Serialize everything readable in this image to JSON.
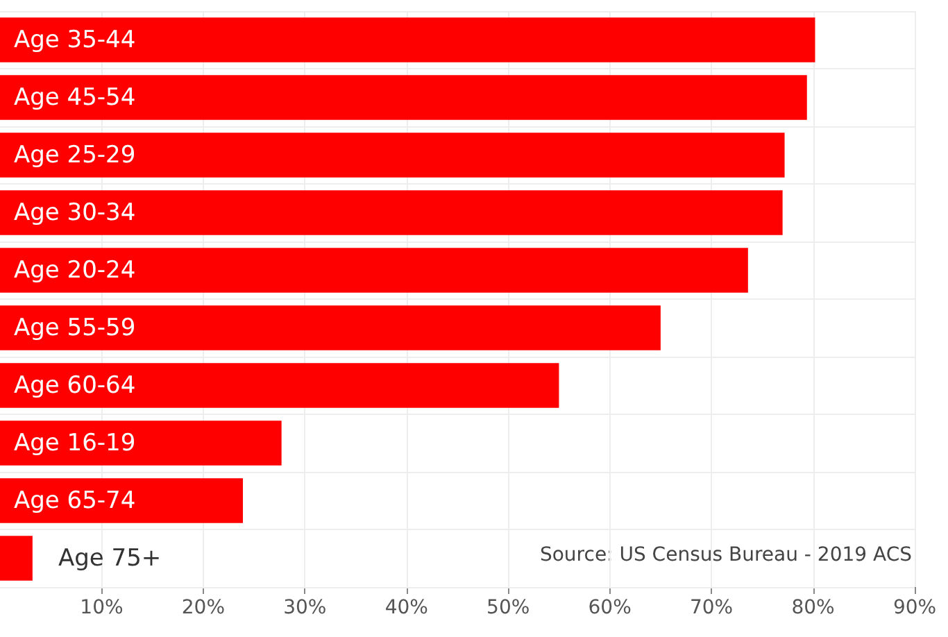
{
  "chart_data": {
    "type": "bar",
    "orientation": "horizontal",
    "categories": [
      "Age 35-44",
      "Age 45-54",
      "Age 25-29",
      "Age 30-34",
      "Age 20-24",
      "Age 55-59",
      "Age 60-64",
      "Age 16-19",
      "Age 65-74",
      "Age 75+"
    ],
    "values": [
      80.2,
      79.4,
      77.2,
      77.0,
      73.6,
      65.0,
      55.0,
      27.7,
      23.9,
      3.2
    ],
    "color": "#ff0000",
    "xlim": [
      0,
      90
    ],
    "xticks": [
      {
        "value": 10,
        "label": "10%"
      },
      {
        "value": 20,
        "label": "20%"
      },
      {
        "value": 30,
        "label": "30%"
      },
      {
        "value": 40,
        "label": "40%"
      },
      {
        "value": 50,
        "label": "50%"
      },
      {
        "value": 60,
        "label": "60%"
      },
      {
        "value": 70,
        "label": "70%"
      },
      {
        "value": 80,
        "label": "80%"
      },
      {
        "value": 90,
        "label": "90%"
      }
    ],
    "annotations": [
      "Source: US Census Bureau - 2019 ACS"
    ],
    "grid": true
  }
}
